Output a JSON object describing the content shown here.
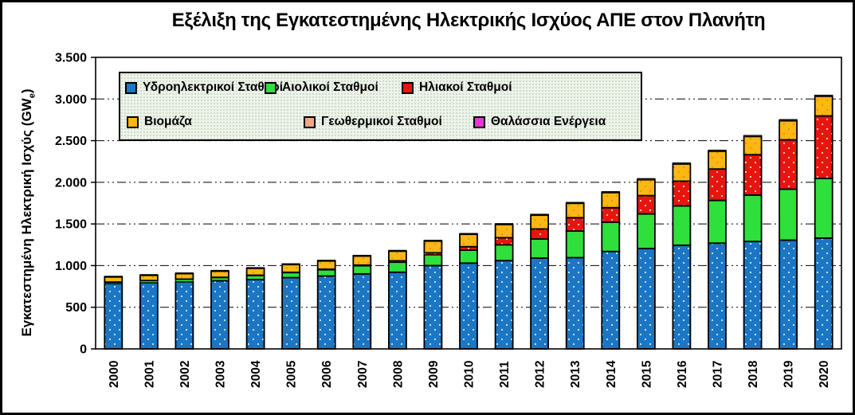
{
  "figure": {
    "type": "chart-image"
  },
  "chart_data": {
    "type": "bar",
    "stacked": true,
    "title": "Εξέλιξη της Εγκατεστημένης Ηλεκτρικής Ισχύος ΑΠΕ στον Πλανήτη",
    "ylabel": "Εγκατεστημένη Ηλεκτρική Ισχύς (GWe)",
    "ylabel_parts": {
      "prefix": "Εγκατεστημένη Ηλεκτρική Ισχύς (GW",
      "subscript": "e",
      "suffix": ")"
    },
    "unit": "GWe",
    "ylim": [
      0,
      3500
    ],
    "ytick_step": 500,
    "ytick_labels": [
      "0",
      "500",
      "1.000",
      "1.500",
      "2.000",
      "2.500",
      "3.000",
      "3.500"
    ],
    "grid": "horizontal dash-dot-dot lines every 500",
    "legend_position": "top-left inside plot, 2 rows x 3 columns",
    "categories": [
      "2000",
      "2001",
      "2002",
      "2003",
      "2004",
      "2005",
      "2006",
      "2007",
      "2008",
      "2009",
      "2010",
      "2011",
      "2012",
      "2013",
      "2014",
      "2015",
      "2016",
      "2017",
      "2018",
      "2019",
      "2020"
    ],
    "series": [
      {
        "key": "hydro",
        "name": "Υδροηλεκτρικοί Σταθμοί",
        "color": "#1B76C4",
        "texture": "white-dots",
        "values": [
          785,
          795,
          805,
          818,
          833,
          855,
          875,
          900,
          920,
          1000,
          1030,
          1060,
          1090,
          1095,
          1170,
          1205,
          1245,
          1270,
          1290,
          1305,
          1330
        ]
      },
      {
        "key": "wind",
        "name": "Αιολικοί Σταθμοί",
        "color": "#2FDF3C",
        "texture": "solid",
        "values": [
          17,
          24,
          31,
          39,
          48,
          60,
          75,
          97,
          120,
          130,
          155,
          190,
          230,
          320,
          350,
          415,
          472,
          512,
          556,
          612,
          716
        ]
      },
      {
        "key": "solar",
        "name": "Ηλιακοί Σταθμοί",
        "color": "#E8150F",
        "texture": "white-dots",
        "values": [
          1,
          1.5,
          2,
          2.5,
          3.5,
          5,
          6.5,
          9,
          17,
          24,
          42,
          85,
          120,
          160,
          175,
          220,
          297,
          378,
          485,
          593,
          750
        ]
      },
      {
        "key": "biomass",
        "name": "Βιομάζα",
        "color": "#FBB713",
        "texture": "dark-dots",
        "values": [
          60,
          62,
          65,
          73,
          82,
          92,
          98,
          108,
          115,
          140,
          148,
          158,
          165,
          172,
          180,
          190,
          205,
          212,
          218,
          228,
          235
        ]
      },
      {
        "key": "geothermal",
        "name": "Γεωθερμικοί Σταθμοί",
        "color": "#EFA881",
        "texture": "solid",
        "values": [
          8,
          8,
          8,
          9,
          9,
          9,
          9,
          9,
          10,
          10,
          10,
          10,
          11,
          11,
          12,
          13,
          13,
          13,
          13,
          14,
          14
        ]
      },
      {
        "key": "marine",
        "name": "Θαλάσσια Ενέργεια",
        "color": "#E935DC",
        "texture": "solid",
        "values": [
          0.3,
          0.3,
          0.3,
          0.3,
          0.3,
          0.3,
          0.3,
          0.3,
          0.3,
          0.3,
          0.3,
          0.5,
          0.5,
          0.5,
          0.5,
          0.5,
          0.5,
          0.5,
          0.5,
          0.5,
          0.5
        ]
      }
    ]
  }
}
